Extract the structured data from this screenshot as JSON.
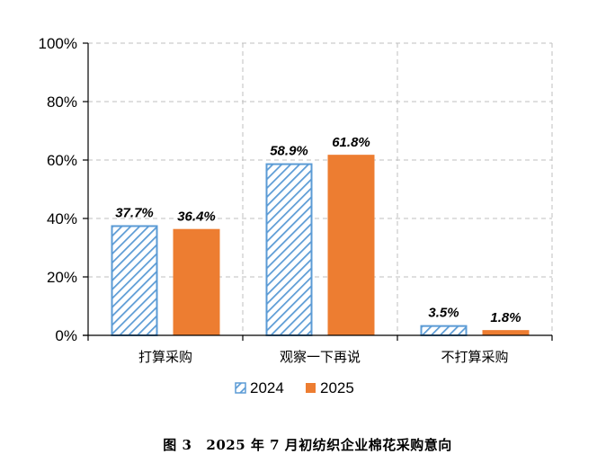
{
  "caption": {
    "figure_number": "图 3",
    "text": "2025 年 7 月初纺织企业棉花采购意向"
  },
  "colors": {
    "series_2024_stroke": "#5b9bd5",
    "series_2025_fill": "#ed7d31",
    "axis": "#000000",
    "grid": "#bfbfbf"
  },
  "chart_data": {
    "type": "bar",
    "categories": [
      "打算采购",
      "观察一下再说",
      "不打算采购"
    ],
    "series": [
      {
        "name": "2024",
        "values": [
          37.7,
          58.9,
          3.5
        ],
        "labels": [
          "37.7%",
          "58.9%",
          "3.5%"
        ],
        "pattern": "diagonal-hatch"
      },
      {
        "name": "2025",
        "values": [
          36.4,
          61.8,
          1.8
        ],
        "labels": [
          "36.4%",
          "61.8%",
          "1.8%"
        ],
        "pattern": "solid"
      }
    ],
    "yticks": [
      "0%",
      "20%",
      "40%",
      "60%",
      "80%",
      "100%"
    ],
    "ylim": [
      0,
      100
    ],
    "grid": true,
    "legend": "bottom-center"
  }
}
